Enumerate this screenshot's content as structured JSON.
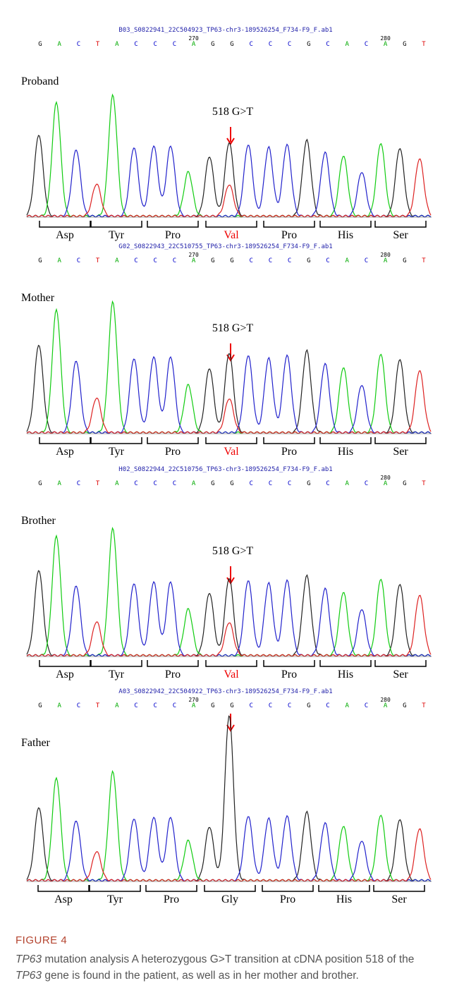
{
  "panels": [
    {
      "file": "B03_S0822941_22C504923_TP63-chr3-189526254_F734-F9_F.ab1",
      "bases": [
        "G",
        "A",
        "C",
        "T",
        "A",
        "C",
        "C",
        "C",
        "A",
        "G",
        "G",
        "C",
        "C",
        "C",
        "G",
        "C",
        "A",
        "C",
        "A",
        "G",
        "T"
      ],
      "ticks": [
        270,
        280
      ],
      "label": "Proband",
      "mutation": "518 G>T",
      "codons": [
        "Asp",
        "Tyr",
        "Pro",
        "Val",
        "Pro",
        "His",
        "Ser"
      ]
    },
    {
      "file": "G02_S0822943_22C510755_TP63-chr3-189526254_F734-F9_F.ab1",
      "bases": [
        "G",
        "A",
        "C",
        "T",
        "A",
        "C",
        "C",
        "C",
        "A",
        "G",
        "G",
        "C",
        "C",
        "C",
        "G",
        "C",
        "A",
        "C",
        "A",
        "G",
        "T"
      ],
      "ticks": [
        270,
        280
      ],
      "label": "Mother",
      "mutation": "518 G>T",
      "codons": [
        "Asp",
        "Tyr",
        "Pro",
        "Val",
        "Pro",
        "His",
        "Ser"
      ]
    },
    {
      "file": "H02_S0822944_22C510756_TP63-chr3-189526254_F734-F9_F.ab1",
      "bases": [
        "G",
        "A",
        "C",
        "T",
        "A",
        "C",
        "C",
        "C",
        "A",
        "G",
        "G",
        "C",
        "C",
        "C",
        "G",
        "C",
        "A",
        "C",
        "A",
        "G",
        "T"
      ],
      "ticks": [
        280
      ],
      "label": "Brother",
      "mutation": "518 G>T",
      "codons": [
        "Asp",
        "Tyr",
        "Pro",
        "Val",
        "Pro",
        "His",
        "Ser"
      ]
    },
    {
      "file": "A03_S0822942_22C504922_TP63-chr3-189526254_F734-F9_F.ab1",
      "bases": [
        "G",
        "A",
        "C",
        "T",
        "A",
        "C",
        "C",
        "C",
        "A",
        "G",
        "G",
        "C",
        "C",
        "C",
        "G",
        "C",
        "A",
        "C",
        "A",
        "G",
        "T"
      ],
      "ticks": [
        270,
        280
      ],
      "label": "Father",
      "codons": [
        "Asp",
        "Tyr",
        "Pro",
        "Gly",
        "Pro",
        "His",
        "Ser"
      ]
    }
  ],
  "caption": {
    "label": "FIGURE 4",
    "parts": [
      "TP63",
      " mutation analysis A heterozygous G>T transition at cDNA position 518 of the ",
      "TP63",
      " gene is found in the patient, as well as in her mother and brother."
    ]
  }
}
